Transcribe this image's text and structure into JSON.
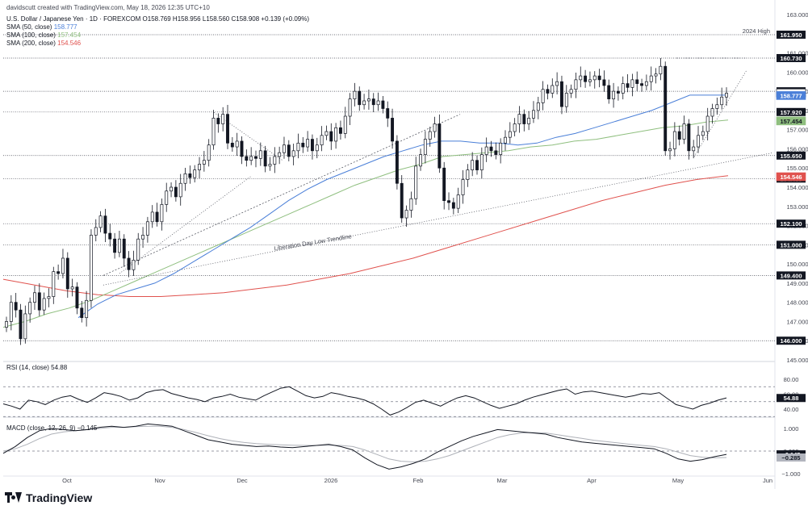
{
  "header": {
    "credit": "davidscutt created with TradingView.com, May 18, 2026 12:35 UTC+10",
    "symbol": "U.S. Dollar / Japanese Yen · 1D · FOREXCOM",
    "ohlc": {
      "open_label": "O",
      "open": "158.769",
      "high_label": "H",
      "high": "158.956",
      "low_label": "L",
      "low": "158.560",
      "close_label": "C",
      "close": "158.908",
      "change": "+0.139 (+0.09%)"
    },
    "sma50": {
      "label": "SMA (50, close)",
      "value": "158.777",
      "color": "#4a7fd8"
    },
    "sma100": {
      "label": "SMA (100, close)",
      "value": "157.454",
      "color": "#8fbf7f"
    },
    "sma200": {
      "label": "SMA (200, close)",
      "value": "154.546",
      "color": "#e0524e"
    },
    "rsi_label": "RSI (14, close)",
    "rsi_value": "54.88",
    "macd_label": "MACD (close, 12, 26, 9)",
    "macd_value": "−0.145"
  },
  "brand": {
    "name": "TradingView"
  },
  "chart_data": {
    "type": "candlestick",
    "price_axis": {
      "min": 145.0,
      "max": 163.0,
      "ticks": [
        "163.000",
        "161.000",
        "160.000",
        "159.000",
        "158.000",
        "157.000",
        "156.000",
        "155.000",
        "154.000",
        "153.000",
        "152.000",
        "151.000",
        "150.000",
        "149.000",
        "148.000",
        "147.000",
        "146.000",
        "145.000"
      ]
    },
    "time_axis": {
      "labels": [
        "Oct",
        "Nov",
        "Dec",
        "2026",
        "Feb",
        "Mar",
        "Apr",
        "May",
        "Jun"
      ]
    },
    "levels": [
      {
        "label": "2024 High",
        "value": 161.95,
        "tag": "161.950"
      },
      {
        "value": 160.73,
        "tag": "160.730"
      },
      {
        "value": 159.0,
        "tag": "159.000"
      },
      {
        "value": 157.92,
        "tag": "157.920"
      },
      {
        "value": 155.65,
        "tag": "155.650"
      },
      {
        "value": 154.45,
        "tag": "154.450"
      },
      {
        "value": 152.1,
        "tag": "152.100"
      },
      {
        "value": 151.0,
        "tag": "151.000"
      },
      {
        "value": 149.4,
        "tag": "149.400"
      },
      {
        "value": 146.0,
        "tag": "146.000"
      }
    ],
    "current_tags": [
      {
        "value": 158.908,
        "tag": "158.908",
        "style": "plain"
      },
      {
        "value": 158.777,
        "tag": "158.777",
        "style": "sma50"
      },
      {
        "value": 157.454,
        "tag": "157.454",
        "style": "sma100"
      },
      {
        "value": 154.546,
        "tag": "154.546",
        "style": "sma200"
      }
    ],
    "annotation": "Liberation Day Low Trendline",
    "closes": [
      147.0,
      148.0,
      147.6,
      146.1,
      147.4,
      148.0,
      148.5,
      147.6,
      148.2,
      148.3,
      149.6,
      149.5,
      150.3,
      148.7,
      148.8,
      147.7,
      147.2,
      148.1,
      151.5,
      151.9,
      152.5,
      151.6,
      151.3,
      150.6,
      151.3,
      150.3,
      149.7,
      150.2,
      151.3,
      151.5,
      152.2,
      152.7,
      152.2,
      153.1,
      153.8,
      154.0,
      153.5,
      154.2,
      154.7,
      154.5,
      154.9,
      155.2,
      155.4,
      156.2,
      157.6,
      157.3,
      157.8,
      156.3,
      156.1,
      156.4,
      155.6,
      155.4,
      155.6,
      155.5,
      155.9,
      155.1,
      155.2,
      155.6,
      155.8,
      156.2,
      155.6,
      155.9,
      156.3,
      156.1,
      156.5,
      155.9,
      156.2,
      156.7,
      156.9,
      156.4,
      157.1,
      156.8,
      157.7,
      158.6,
      159.0,
      158.3,
      158.5,
      158.6,
      158.3,
      158.5,
      158.1,
      157.6,
      156.4,
      154.2,
      152.4,
      152.8,
      153.4,
      155.1,
      155.7,
      156.5,
      156.9,
      157.3,
      155.0,
      153.3,
      153.2,
      152.9,
      153.6,
      154.4,
      154.9,
      155.4,
      154.9,
      155.7,
      156.1,
      155.9,
      155.7,
      156.3,
      156.6,
      156.9,
      157.3,
      157.8,
      157.3,
      157.6,
      158.0,
      158.4,
      159.1,
      158.9,
      159.3,
      159.5,
      158.2,
      158.9,
      159.1,
      159.6,
      159.8,
      159.5,
      159.6,
      159.8,
      159.6,
      159.3,
      158.6,
      159.0,
      158.9,
      159.4,
      159.2,
      159.6,
      159.4,
      159.3,
      159.5,
      159.8,
      159.9,
      160.3,
      155.9,
      156.0,
      156.9,
      156.5,
      157.3,
      155.9,
      156.1,
      156.7,
      156.9,
      157.7,
      158.1,
      158.3,
      158.7,
      158.9
    ],
    "sma50": [
      147.2,
      147.9,
      148.4,
      148.7,
      149.0,
      149.5,
      150.1,
      150.7,
      151.3,
      151.9,
      152.6,
      153.3,
      153.9,
      154.4,
      154.8,
      155.2,
      155.6,
      155.9,
      156.2,
      156.4,
      156.4,
      156.3,
      156.3,
      156.2,
      156.3,
      156.6,
      156.8,
      157.1,
      157.4,
      157.7,
      158.0,
      158.4,
      158.8,
      158.8,
      158.8
    ],
    "sma100": [
      146.7,
      147.0,
      147.4,
      147.7,
      148.1,
      148.6,
      149.1,
      149.6,
      150.1,
      150.6,
      151.1,
      151.6,
      152.1,
      152.6,
      153.1,
      153.6,
      154.1,
      154.5,
      154.9,
      155.2,
      155.6,
      155.7,
      155.8,
      155.9,
      156.1,
      156.2,
      156.4,
      156.5,
      156.7,
      156.9,
      157.1,
      157.2,
      157.4,
      157.5
    ],
    "sma200": [
      149.2,
      148.9,
      148.6,
      148.4,
      148.3,
      148.3,
      148.4,
      148.5,
      148.7,
      148.9,
      149.2,
      149.5,
      149.9,
      150.3,
      150.8,
      151.3,
      151.8,
      152.3,
      152.8,
      153.3,
      153.7,
      154.1,
      154.4,
      154.6
    ],
    "rsi": {
      "ticks": [
        "80.00",
        "60.00",
        "54.88",
        "40.00"
      ],
      "bands": [
        70,
        30
      ],
      "mid": 50,
      "value": 54.88,
      "values": [
        47,
        44,
        40,
        52,
        50,
        46,
        52,
        56,
        58,
        53,
        49,
        55,
        62,
        60,
        57,
        52,
        55,
        62,
        65,
        66,
        61,
        58,
        55,
        53,
        50,
        55,
        57,
        60,
        56,
        54,
        52,
        58,
        63,
        68,
        70,
        64,
        58,
        55,
        57,
        62,
        60,
        57,
        55,
        52,
        47,
        40,
        32,
        36,
        42,
        49,
        52,
        48,
        44,
        50,
        55,
        58,
        55,
        50,
        45,
        41,
        44,
        47,
        52,
        56,
        59,
        62,
        65,
        67,
        60,
        63,
        64,
        62,
        60,
        58,
        56,
        58,
        61,
        60,
        62,
        54,
        46,
        43,
        40,
        45,
        48,
        52,
        55
      ]
    },
    "macd": {
      "ticks": [
        "1.000",
        "0.000",
        "−0.145",
        "−0.285",
        "−1.000"
      ],
      "value": -0.145,
      "signal": -0.285,
      "macd": [
        -0.1,
        0.2,
        0.6,
        0.9,
        1.0,
        0.95,
        0.9,
        0.95,
        1.05,
        1.1,
        1.05,
        1.1,
        1.2,
        1.15,
        1.1,
        0.9,
        0.7,
        0.5,
        0.4,
        0.3,
        0.25,
        0.2,
        0.22,
        0.18,
        0.15,
        0.2,
        0.25,
        0.3,
        0.2,
        0.05,
        -0.3,
        -0.6,
        -0.8,
        -0.7,
        -0.55,
        -0.35,
        -0.05,
        0.2,
        0.45,
        0.65,
        0.8,
        0.95,
        0.9,
        0.85,
        0.8,
        0.75,
        0.6,
        0.5,
        0.4,
        0.35,
        0.3,
        0.25,
        0.2,
        0.15,
        0.1,
        -0.1,
        -0.35,
        -0.45,
        -0.38,
        -0.25,
        -0.145
      ],
      "signal_line": [
        0.0,
        0.1,
        0.3,
        0.55,
        0.75,
        0.85,
        0.9,
        0.95,
        1.0,
        1.05,
        1.05,
        1.08,
        1.1,
        1.1,
        1.05,
        0.95,
        0.82,
        0.68,
        0.55,
        0.45,
        0.38,
        0.33,
        0.3,
        0.28,
        0.26,
        0.25,
        0.25,
        0.26,
        0.25,
        0.2,
        0.05,
        -0.15,
        -0.35,
        -0.45,
        -0.48,
        -0.45,
        -0.35,
        -0.2,
        0.0,
        0.2,
        0.4,
        0.6,
        0.72,
        0.8,
        0.82,
        0.8,
        0.72,
        0.64,
        0.56,
        0.48,
        0.42,
        0.36,
        0.3,
        0.25,
        0.2,
        0.1,
        -0.05,
        -0.2,
        -0.27,
        -0.3,
        -0.285
      ]
    }
  }
}
